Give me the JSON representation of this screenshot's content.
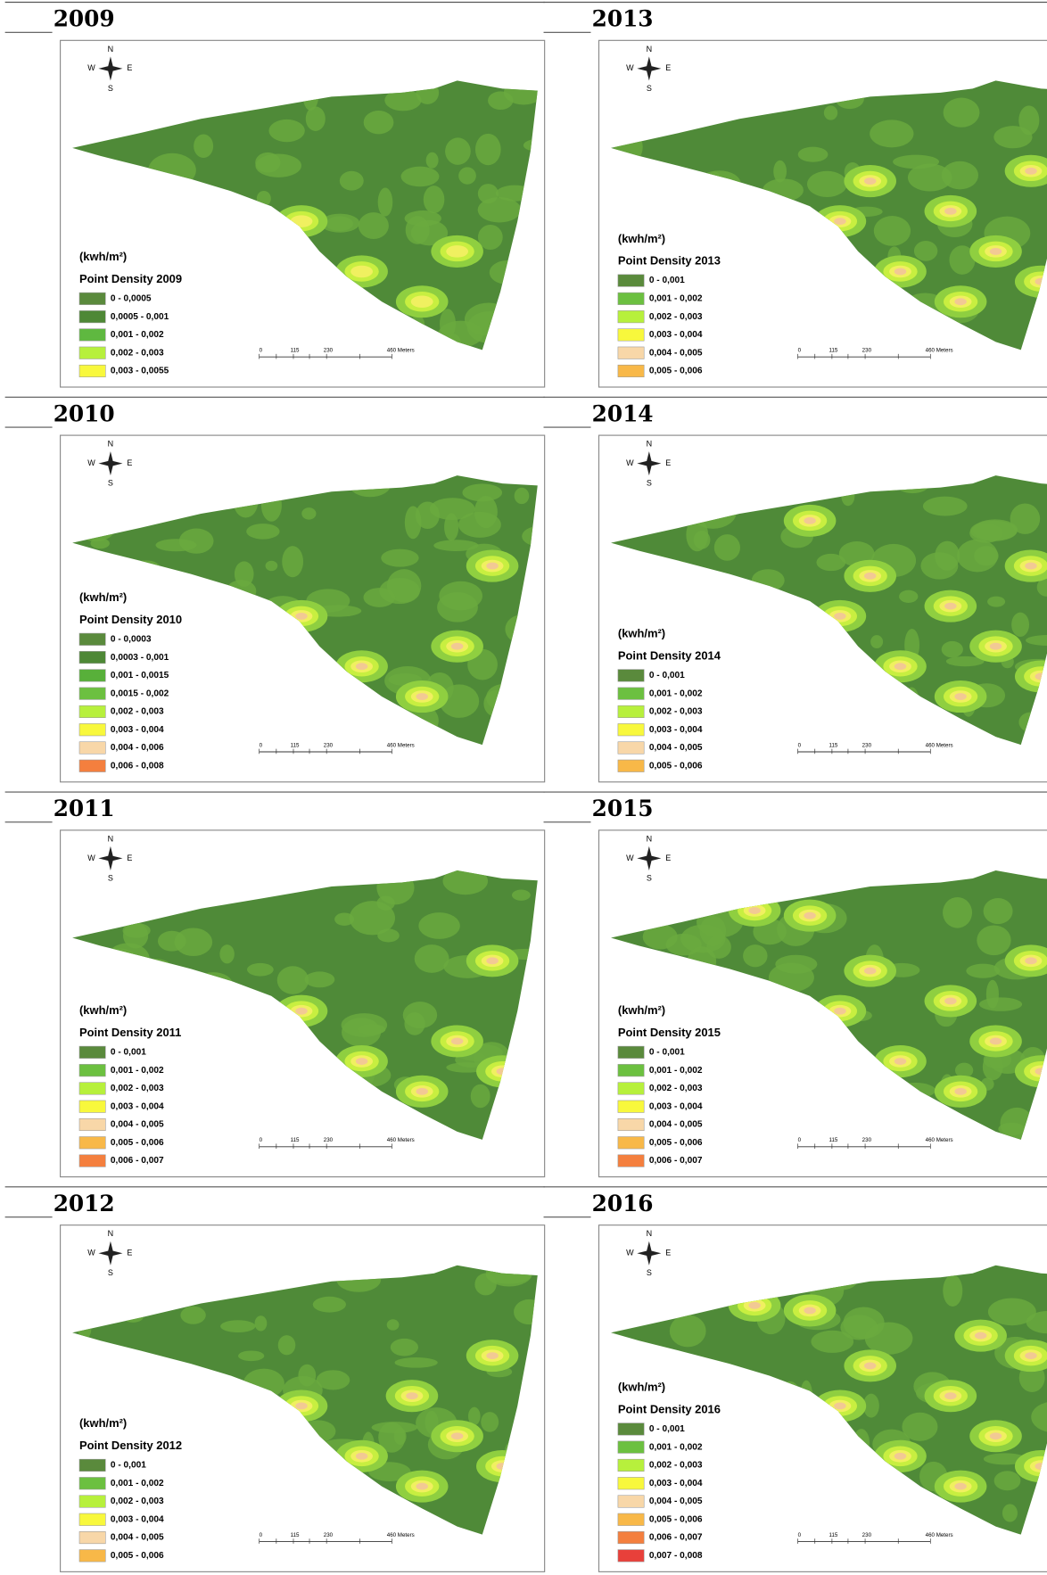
{
  "compass": {
    "n": "N",
    "w": "W",
    "e": "E",
    "s": "S"
  },
  "scale_bar": [
    "0",
    "115",
    "230",
    "460 Meters"
  ],
  "unit": "(kwh/m²)",
  "panels": [
    {
      "year": "2009",
      "legend_title": "Point Density 2009",
      "legend": [
        {
          "label": "0 - 0,0005",
          "color": "#5a8a3c"
        },
        {
          "label": "0,0005 - 0,001",
          "color": "#4e8836"
        },
        {
          "label": "0,001 - 0,002",
          "color": "#5fb840"
        },
        {
          "label": "0,002 - 0,003",
          "color": "#b7f03c"
        },
        {
          "label": "0,003 - 0,0055",
          "color": "#f8f83c"
        }
      ]
    },
    {
      "year": "2010",
      "legend_title": "Point Density 2010",
      "legend": [
        {
          "label": "0 - 0,0003",
          "color": "#5a8a3c"
        },
        {
          "label": "0,0003 - 0,001",
          "color": "#4e8836"
        },
        {
          "label": "0,001 - 0,0015",
          "color": "#58b03a"
        },
        {
          "label": "0,0015 - 0,002",
          "color": "#6cc040"
        },
        {
          "label": "0,002 - 0,003",
          "color": "#b7f03c"
        },
        {
          "label": "0,003 - 0,004",
          "color": "#f8f83c"
        },
        {
          "label": "0,004 - 0,006",
          "color": "#f8d7a8"
        },
        {
          "label": "0,006 - 0,008",
          "color": "#f47f3e"
        }
      ]
    },
    {
      "year": "2011",
      "legend_title": "Point Density 2011",
      "legend": [
        {
          "label": "0 - 0,001",
          "color": "#5a8a3c"
        },
        {
          "label": "0,001 - 0,002",
          "color": "#6cc040"
        },
        {
          "label": "0,002 - 0,003",
          "color": "#b7f03c"
        },
        {
          "label": "0,003 - 0,004",
          "color": "#f8f83c"
        },
        {
          "label": "0,004 - 0,005",
          "color": "#f8d7a8"
        },
        {
          "label": "0,005 - 0,006",
          "color": "#f8b848"
        },
        {
          "label": "0,006 - 0,007",
          "color": "#f47f3e"
        }
      ]
    },
    {
      "year": "2012",
      "legend_title": "Point Density 2012",
      "legend": [
        {
          "label": "0 - 0,001",
          "color": "#5a8a3c"
        },
        {
          "label": "0,001 - 0,002",
          "color": "#6cc040"
        },
        {
          "label": "0,002 - 0,003",
          "color": "#b7f03c"
        },
        {
          "label": "0,003 - 0,004",
          "color": "#f8f83c"
        },
        {
          "label": "0,004 - 0,005",
          "color": "#f8d7a8"
        },
        {
          "label": "0,005 - 0,006",
          "color": "#f8b848"
        }
      ]
    },
    {
      "year": "2013",
      "legend_title": "Point Density 2013",
      "legend": [
        {
          "label": "0 - 0,001",
          "color": "#5a8a3c"
        },
        {
          "label": "0,001 - 0,002",
          "color": "#6cc040"
        },
        {
          "label": "0,002 - 0,003",
          "color": "#b7f03c"
        },
        {
          "label": "0,003 - 0,004",
          "color": "#f8f83c"
        },
        {
          "label": "0,004 - 0,005",
          "color": "#f8d7a8"
        },
        {
          "label": "0,005 - 0,006",
          "color": "#f8b848"
        }
      ]
    },
    {
      "year": "2014",
      "legend_title": "Point Density 2014",
      "legend": [
        {
          "label": "0 - 0,001",
          "color": "#5a8a3c"
        },
        {
          "label": "0,001 - 0,002",
          "color": "#6cc040"
        },
        {
          "label": "0,002 - 0,003",
          "color": "#b7f03c"
        },
        {
          "label": "0,003 - 0,004",
          "color": "#f8f83c"
        },
        {
          "label": "0,004 - 0,005",
          "color": "#f8d7a8"
        },
        {
          "label": "0,005 - 0,006",
          "color": "#f8b848"
        }
      ]
    },
    {
      "year": "2015",
      "legend_title": "Point Density 2015",
      "legend": [
        {
          "label": "0 - 0,001",
          "color": "#5a8a3c"
        },
        {
          "label": "0,001 - 0,002",
          "color": "#6cc040"
        },
        {
          "label": "0,002 - 0,003",
          "color": "#b7f03c"
        },
        {
          "label": "0,003 - 0,004",
          "color": "#f8f83c"
        },
        {
          "label": "0,004 - 0,005",
          "color": "#f8d7a8"
        },
        {
          "label": "0,005 - 0,006",
          "color": "#f8b848"
        },
        {
          "label": "0,006 - 0,007",
          "color": "#f47f3e"
        }
      ]
    },
    {
      "year": "2016",
      "legend_title": "Point Density 2016",
      "legend": [
        {
          "label": "0 - 0,001",
          "color": "#5a8a3c"
        },
        {
          "label": "0,001 - 0,002",
          "color": "#6cc040"
        },
        {
          "label": "0,002 - 0,003",
          "color": "#b7f03c"
        },
        {
          "label": "0,003 - 0,004",
          "color": "#f8f83c"
        },
        {
          "label": "0,004 - 0,005",
          "color": "#f8d7a8"
        },
        {
          "label": "0,005 - 0,006",
          "color": "#f8b848"
        },
        {
          "label": "0,006 - 0,007",
          "color": "#f47f3e"
        },
        {
          "label": "0,007 - 0,008",
          "color": "#e8403a"
        }
      ]
    }
  ]
}
